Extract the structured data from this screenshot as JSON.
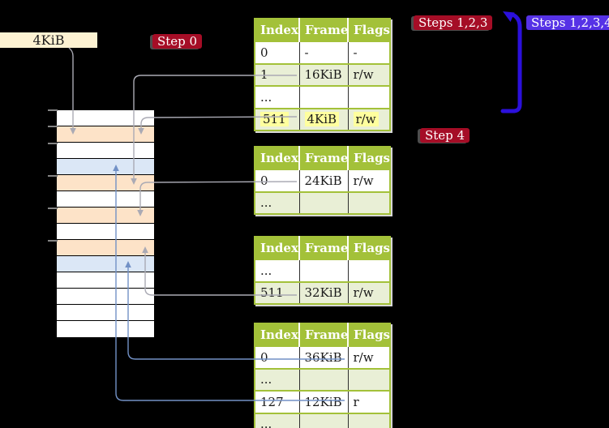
{
  "labels": {
    "page_size_box": "4KiB",
    "step0": "Step 0",
    "steps123": "Steps 1,2,3",
    "steps1234": "Steps 1,2,3,4",
    "step4": "Step 4"
  },
  "colors": {
    "background": "#000000",
    "page_size_box_fill": "#fdf2d2",
    "step_label_bg": "#a50d26",
    "steps1234_label_bg": "#5632e6",
    "big_bracket_arrow": "#2b10dc",
    "table_header_bg": "#a3c139",
    "table_row_shaded": "#e9efd6",
    "row_highlight": "#ffff9e",
    "memory_frame_orange": "#fde3c8",
    "memory_frame_blue": "#dbe7f6",
    "connector_gray": "#aaaab4",
    "connector_blue": "#7291c6"
  },
  "memory_stack": {
    "rows": [
      {
        "color": "white"
      },
      {
        "color": "orange"
      },
      {
        "color": "white"
      },
      {
        "color": "blue"
      },
      {
        "color": "orange"
      },
      {
        "color": "white"
      },
      {
        "color": "orange"
      },
      {
        "color": "white"
      },
      {
        "color": "orange"
      },
      {
        "color": "blue"
      },
      {
        "color": "white"
      },
      {
        "color": "white"
      },
      {
        "color": "white"
      },
      {
        "color": "white"
      }
    ]
  },
  "tables": [
    {
      "columns": [
        "Index",
        "Frame",
        "Flags"
      ],
      "rows": [
        {
          "cells": [
            "0",
            "-",
            "-"
          ],
          "shaded": false,
          "highlight": false
        },
        {
          "cells": [
            "1",
            "16KiB",
            "r/w"
          ],
          "shaded": true,
          "highlight": false
        },
        {
          "cells": [
            "...",
            "",
            ""
          ],
          "shaded": false,
          "highlight": false
        },
        {
          "cells": [
            "511",
            "4KiB",
            "r/w"
          ],
          "shaded": true,
          "highlight": true
        }
      ]
    },
    {
      "columns": [
        "Index",
        "Frame",
        "Flags"
      ],
      "rows": [
        {
          "cells": [
            "0",
            "24KiB",
            "r/w"
          ],
          "shaded": false,
          "highlight": false
        },
        {
          "cells": [
            "...",
            "",
            ""
          ],
          "shaded": true,
          "highlight": false
        }
      ]
    },
    {
      "columns": [
        "Index",
        "Frame",
        "Flags"
      ],
      "rows": [
        {
          "cells": [
            "...",
            "",
            ""
          ],
          "shaded": false,
          "highlight": false
        },
        {
          "cells": [
            "511",
            "32KiB",
            "r/w"
          ],
          "shaded": true,
          "highlight": false
        }
      ]
    },
    {
      "columns": [
        "Index",
        "Frame",
        "Flags"
      ],
      "rows": [
        {
          "cells": [
            "0",
            "36KiB",
            "r/w"
          ],
          "shaded": false,
          "highlight": false
        },
        {
          "cells": [
            "...",
            "",
            ""
          ],
          "shaded": true,
          "highlight": false
        },
        {
          "cells": [
            "127",
            "12KiB",
            "r"
          ],
          "shaded": false,
          "highlight": false
        },
        {
          "cells": [
            "...",
            "",
            ""
          ],
          "shaded": true,
          "highlight": false
        }
      ]
    }
  ]
}
